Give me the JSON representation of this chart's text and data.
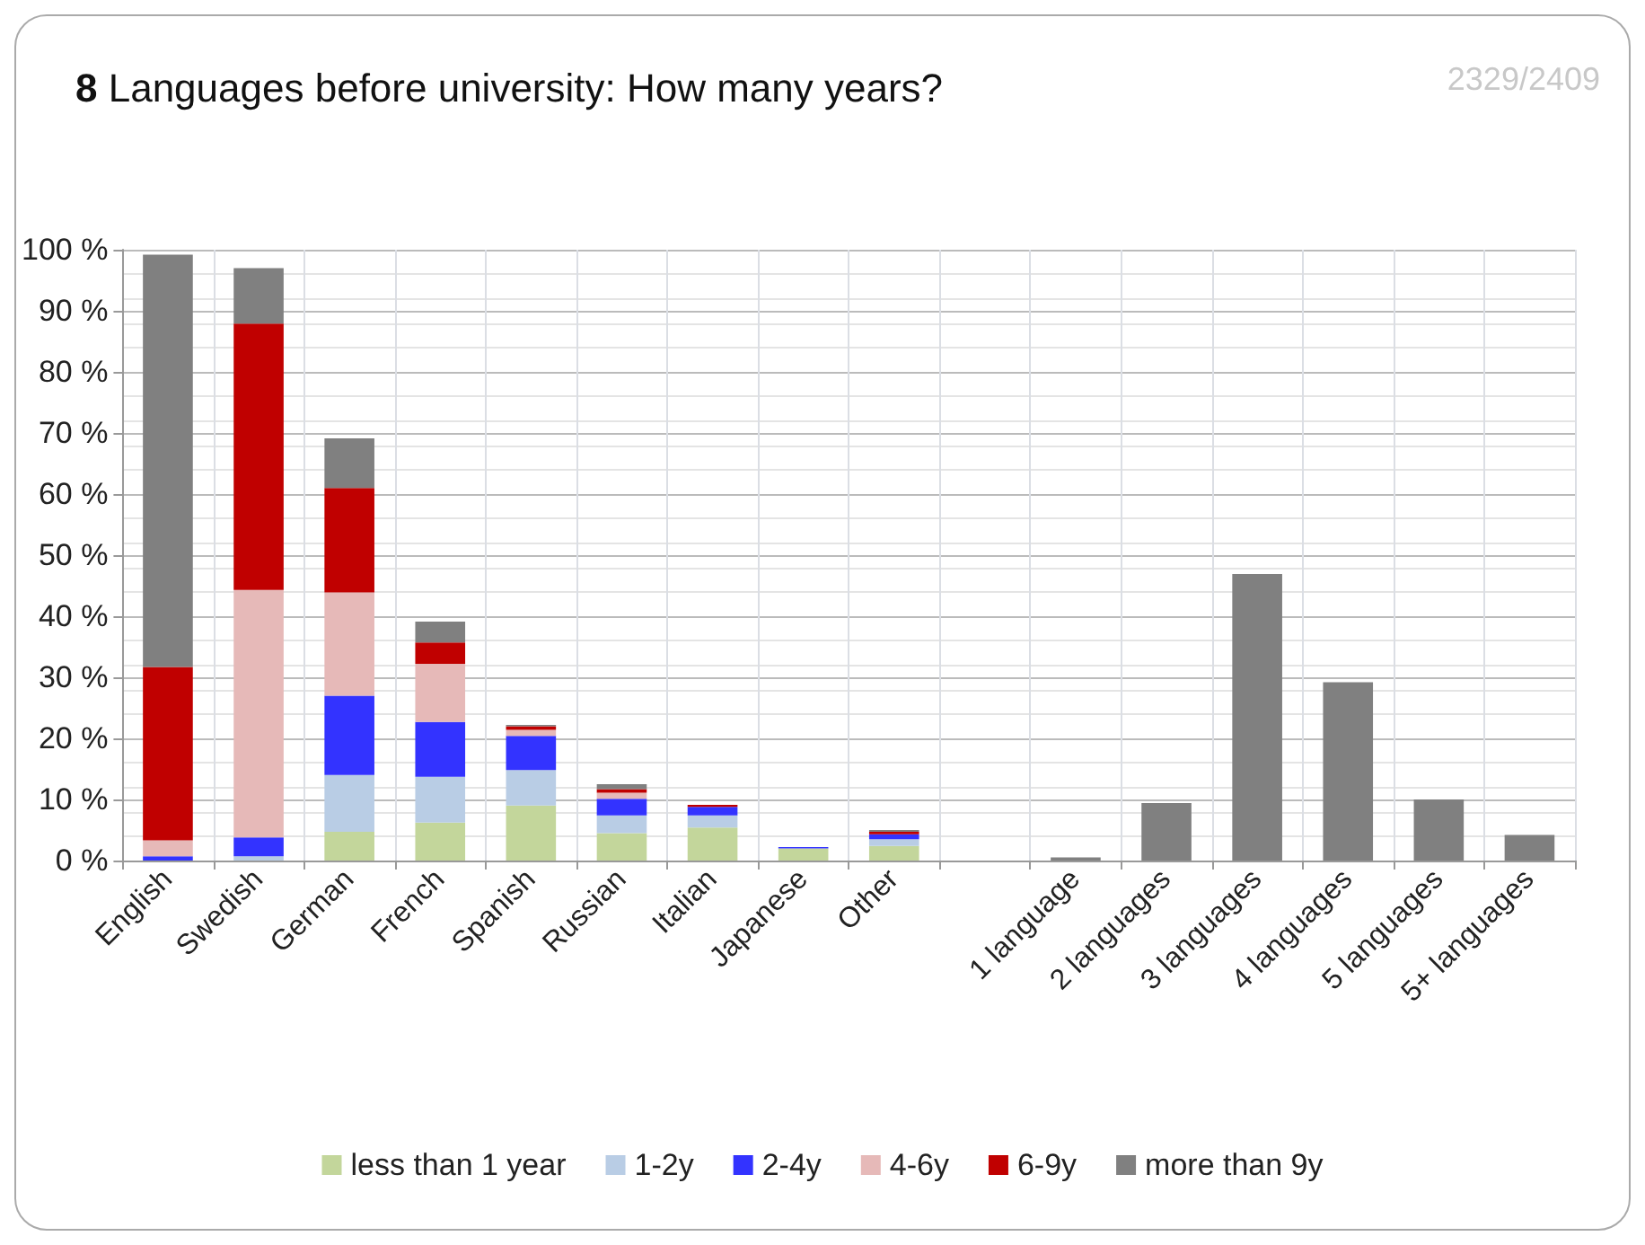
{
  "chart_data": {
    "type": "bar",
    "stacked": true,
    "title": "8 Languages before university: How many years?",
    "annotations": [
      "2329/2409"
    ],
    "categories": [
      "English",
      "Swedish",
      "German",
      "French",
      "Spanish",
      "Russian",
      "Italian",
      "Japanese",
      "Other",
      null,
      "1 language",
      "2 languages",
      "3 languages",
      "4 languages",
      "5 languages",
      "5+ languages"
    ],
    "series": [
      {
        "name": "less than 1 year",
        "color": "#c3d69b",
        "values": [
          0,
          0,
          4.7,
          6.2,
          9.0,
          4.5,
          5.4,
          2.0,
          2.4,
          null,
          null,
          null,
          null,
          null,
          null,
          null
        ]
      },
      {
        "name": "1-2y",
        "color": "#b9cde5",
        "values": [
          0,
          0.7,
          9.3,
          7.5,
          5.8,
          2.9,
          2.0,
          null,
          1.1,
          null,
          null,
          null,
          null,
          null,
          null,
          null
        ]
      },
      {
        "name": "2-4y",
        "color": "#3333ff",
        "values": [
          0.7,
          3.1,
          13.0,
          9.0,
          5.6,
          2.7,
          1.4,
          0.2,
          0.8,
          null,
          null,
          null,
          null,
          null,
          null,
          null
        ]
      },
      {
        "name": "4-6y",
        "color": "#e6b9b8",
        "values": [
          2.6,
          40.5,
          16.9,
          9.5,
          1.0,
          1.0,
          null,
          0,
          null,
          null,
          null,
          null,
          null,
          null,
          null,
          null
        ]
      },
      {
        "name": "6-9y",
        "color": "#c00000",
        "values": [
          28.4,
          43.6,
          17.1,
          3.5,
          0.6,
          0.6,
          0.3,
          0,
          0.4,
          null,
          null,
          null,
          null,
          null,
          null,
          null
        ]
      },
      {
        "name": "more than 9y",
        "color": "#808080",
        "values": [
          67.5,
          9.1,
          8.1,
          3.4,
          0.2,
          0.8,
          0,
          0,
          0.3,
          null,
          0.5,
          9.4,
          46.9,
          29.2,
          10.0,
          4.2
        ]
      }
    ],
    "ylim": [
      0,
      100
    ],
    "yticks": [
      {
        "value": 0,
        "label": "0 %"
      },
      {
        "value": 10,
        "label": "10 %"
      },
      {
        "value": 20,
        "label": "20 %"
      },
      {
        "value": 30,
        "label": "30 %"
      },
      {
        "value": 40,
        "label": "40 %"
      },
      {
        "value": 50,
        "label": "50 %"
      },
      {
        "value": 60,
        "label": "60 %"
      },
      {
        "value": 70,
        "label": "70 %"
      },
      {
        "value": 80,
        "label": "80 %"
      },
      {
        "value": 90,
        "label": "90 %"
      },
      {
        "value": 100,
        "label": "100 %"
      }
    ],
    "grid": true,
    "legend": "bottom"
  }
}
